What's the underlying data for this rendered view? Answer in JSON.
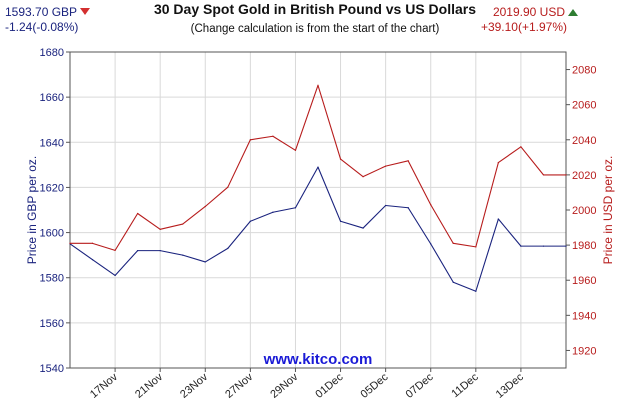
{
  "header": {
    "title": "30 Day Spot Gold in British Pound vs US Dollars",
    "subtitle": "(Change calculation is from the start of the chart)",
    "gbp_price": "1593.70 GBP",
    "gbp_change": "-1.24(-0.08%)",
    "usd_price": "2019.90 USD",
    "usd_change": "+39.10(+1.97%)",
    "watermark": "www.kitco.com"
  },
  "colors": {
    "gbp": "#1a237e",
    "usd": "#b71c1c",
    "grid": "#d9d9d9",
    "down": "#d32f2f",
    "up": "#2e7d32"
  },
  "chart_data": {
    "type": "line",
    "x": [
      "15Nov",
      "16Nov",
      "17Nov",
      "20Nov",
      "21Nov",
      "22Nov",
      "23Nov",
      "24Nov",
      "27Nov",
      "28Nov",
      "29Nov",
      "30Nov",
      "01Dec",
      "04Dec",
      "05Dec",
      "06Dec",
      "07Dec",
      "08Dec",
      "11Dec",
      "12Dec",
      "13Dec",
      "14Dec",
      "15Dec"
    ],
    "x_tick_labels": [
      "17Nov",
      "21Nov",
      "23Nov",
      "27Nov",
      "29Nov",
      "01Dec",
      "05Dec",
      "07Dec",
      "11Dec",
      "13Dec"
    ],
    "x_tick_indices": [
      2,
      4,
      6,
      8,
      10,
      12,
      14,
      16,
      18,
      20
    ],
    "series": [
      {
        "axis": "left",
        "color": "#1a237e",
        "values": [
          1595,
          1588,
          1581,
          1592,
          1592,
          1590,
          1587,
          1593,
          1605,
          1609,
          1611,
          1629,
          1605,
          1602,
          1612,
          1611,
          1595,
          1578,
          1574,
          1606,
          1594,
          1594,
          1594
        ]
      },
      {
        "axis": "right",
        "color": "#b71c1c",
        "values": [
          1981,
          1981,
          1977,
          1998,
          1989,
          1992,
          2002,
          2013,
          2040,
          2042,
          2034,
          2071,
          2029,
          2019,
          2025,
          2028,
          2003,
          1981,
          1979,
          2027,
          2036,
          2020,
          2020
        ]
      }
    ],
    "y_left": {
      "label": "Price in GBP per oz.",
      "min": 1540,
      "max": 1680,
      "ticks": [
        1540,
        1560,
        1580,
        1600,
        1620,
        1640,
        1660,
        1680
      ]
    },
    "y_right": {
      "label": "Price in USD per oz.",
      "min": 1910,
      "max": 2090,
      "ticks": [
        1920,
        1940,
        1960,
        1980,
        2000,
        2020,
        2040,
        2060,
        2080
      ]
    },
    "grid": true
  }
}
